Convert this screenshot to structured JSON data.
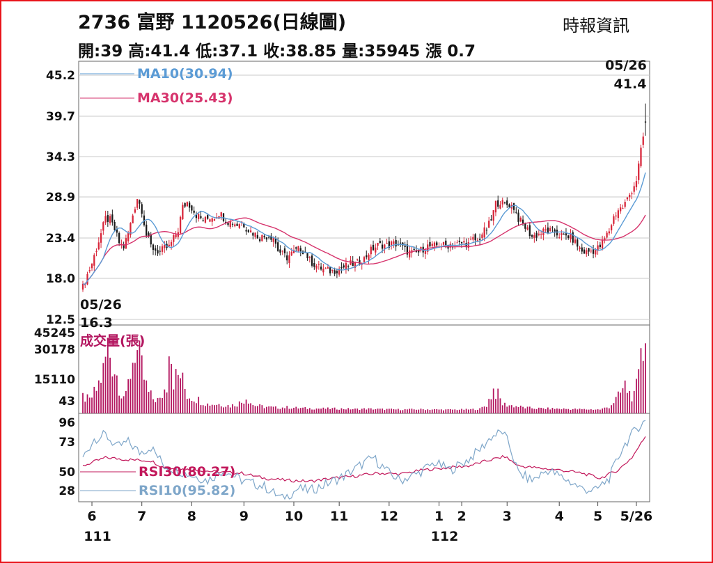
{
  "header": {
    "title": "2736  富野 1120526(日線圖)",
    "source": "時報資訊",
    "stats": "開:39 高:41.4 低:37.1 收:38.85 量:35945 漲 0.7"
  },
  "colors": {
    "frame": "#e8141b",
    "candle_up": "#d8263a",
    "candle_down": "#1a1a1a",
    "ma10": "#5b9bd5",
    "ma30": "#d6336c",
    "volume": "#b3155f",
    "rsi10": "#7ea6c9",
    "rsi30": "#c2185b",
    "grid": "#c8c8c8"
  },
  "chart_data": [
    {
      "type": "candlestick",
      "panel": "price",
      "y_ticks": [
        "45.2",
        "39.7",
        "34.3",
        "28.9",
        "23.4",
        "18.0",
        "12.5"
      ],
      "ylim": [
        12.5,
        45.2
      ],
      "grid": true,
      "annotations": {
        "high_date": "05/26",
        "high_value": "41.4",
        "low_date": "05/26",
        "low_value": "16.3"
      },
      "series": [
        {
          "name": "MA10(30.94)"
        },
        {
          "name": "MA30(25.43)"
        }
      ],
      "close_path": [
        [
          0,
          16.8
        ],
        [
          2,
          18.5
        ],
        [
          4,
          20.0
        ],
        [
          6,
          22.0
        ],
        [
          8,
          24.0
        ],
        [
          10,
          26.0
        ],
        [
          12,
          25.8
        ],
        [
          14,
          24.5
        ],
        [
          16,
          22.8
        ],
        [
          18,
          22.2
        ],
        [
          20,
          24.0
        ],
        [
          22,
          26.5
        ],
        [
          24,
          28.8
        ],
        [
          26,
          27.2
        ],
        [
          28,
          23.8
        ],
        [
          30,
          22.3
        ],
        [
          32,
          21.8
        ],
        [
          34,
          21.5
        ],
        [
          36,
          22.0
        ],
        [
          38,
          22.2
        ],
        [
          40,
          23.3
        ],
        [
          42,
          24.5
        ],
        [
          44,
          27.5
        ],
        [
          46,
          28.2
        ],
        [
          48,
          27.5
        ],
        [
          50,
          26.5
        ],
        [
          52,
          26.0
        ],
        [
          54,
          25.8
        ],
        [
          56,
          26.2
        ],
        [
          58,
          26.3
        ],
        [
          60,
          26.8
        ],
        [
          62,
          26.2
        ],
        [
          64,
          25.6
        ],
        [
          66,
          25.5
        ],
        [
          68,
          25.2
        ],
        [
          70,
          25.6
        ],
        [
          72,
          24.8
        ],
        [
          74,
          24.3
        ],
        [
          76,
          23.9
        ],
        [
          78,
          23.5
        ],
        [
          80,
          23.6
        ],
        [
          82,
          23.7
        ],
        [
          84,
          23.5
        ],
        [
          86,
          21.8
        ],
        [
          88,
          21.2
        ],
        [
          90,
          20.8
        ],
        [
          92,
          21.3
        ],
        [
          94,
          21.7
        ],
        [
          96,
          22.0
        ],
        [
          98,
          21.5
        ],
        [
          100,
          20.4
        ],
        [
          102,
          19.9
        ],
        [
          104,
          19.5
        ],
        [
          106,
          19.2
        ],
        [
          108,
          19.0
        ],
        [
          110,
          19.0
        ],
        [
          112,
          19.2
        ],
        [
          114,
          19.4
        ],
        [
          116,
          19.6
        ],
        [
          118,
          19.9
        ],
        [
          120,
          19.9
        ],
        [
          122,
          20.3
        ],
        [
          124,
          20.6
        ],
        [
          126,
          21.5
        ],
        [
          128,
          22.0
        ],
        [
          130,
          22.4
        ],
        [
          132,
          22.5
        ],
        [
          134,
          22.4
        ],
        [
          136,
          22.6
        ],
        [
          138,
          22.6
        ],
        [
          140,
          22.4
        ],
        [
          142,
          21.8
        ],
        [
          144,
          21.5
        ],
        [
          146,
          21.3
        ],
        [
          148,
          21.5
        ],
        [
          150,
          22.0
        ],
        [
          152,
          22.3
        ],
        [
          154,
          22.2
        ],
        [
          156,
          22.4
        ],
        [
          158,
          22.5
        ],
        [
          160,
          22.3
        ],
        [
          162,
          22.6
        ],
        [
          164,
          22.5
        ],
        [
          166,
          22.6
        ],
        [
          168,
          22.8
        ],
        [
          170,
          22.6
        ],
        [
          172,
          23.2
        ],
        [
          174,
          23.0
        ],
        [
          176,
          24.0
        ],
        [
          178,
          24.6
        ],
        [
          180,
          25.8
        ],
        [
          182,
          28.0
        ],
        [
          184,
          28.3
        ],
        [
          186,
          27.8
        ],
        [
          188,
          27.9
        ],
        [
          190,
          27.5
        ],
        [
          192,
          26.0
        ],
        [
          194,
          25.2
        ],
        [
          196,
          24.5
        ],
        [
          198,
          23.6
        ],
        [
          200,
          23.8
        ],
        [
          202,
          24.1
        ],
        [
          204,
          24.4
        ],
        [
          206,
          24.3
        ],
        [
          208,
          24.2
        ],
        [
          210,
          23.8
        ],
        [
          212,
          23.6
        ],
        [
          214,
          23.7
        ],
        [
          216,
          23.2
        ],
        [
          218,
          22.4
        ],
        [
          220,
          21.6
        ],
        [
          222,
          21.5
        ],
        [
          224,
          21.7
        ],
        [
          226,
          21.8
        ],
        [
          228,
          22.3
        ],
        [
          230,
          23.3
        ],
        [
          232,
          24.4
        ],
        [
          234,
          26.2
        ],
        [
          236,
          27.2
        ],
        [
          238,
          27.5
        ],
        [
          240,
          28.6
        ],
        [
          242,
          29.8
        ],
        [
          244,
          31.2
        ],
        [
          246,
          35.0
        ],
        [
          248,
          38.85
        ]
      ],
      "final_candle": {
        "open": 39,
        "high": 41.4,
        "low": 37.1,
        "close": 38.85
      }
    },
    {
      "type": "bar",
      "panel": "volume",
      "title": "成交量(張)",
      "y_ticks": [
        "45245",
        "30178",
        "15110",
        "43"
      ],
      "ylim": [
        43,
        45245
      ],
      "series": [
        {
          "name": "成交量(張)",
          "profile": [
            [
              0,
              8000
            ],
            [
              3,
              6000
            ],
            [
              6,
              12000
            ],
            [
              9,
              22000
            ],
            [
              11,
              36000
            ],
            [
              13,
              28000
            ],
            [
              15,
              20000
            ],
            [
              17,
              10000
            ],
            [
              19,
              8000
            ],
            [
              21,
              22000
            ],
            [
              23,
              36000
            ],
            [
              25,
              28000
            ],
            [
              27,
              18000
            ],
            [
              29,
              10000
            ],
            [
              31,
              7000
            ],
            [
              34,
              6000
            ],
            [
              37,
              15000
            ],
            [
              38,
              45245
            ],
            [
              40,
              18000
            ],
            [
              43,
              20000
            ],
            [
              46,
              9000
            ],
            [
              50,
              7000
            ],
            [
              55,
              4000
            ],
            [
              60,
              4000
            ],
            [
              65,
              3000
            ],
            [
              70,
              5000
            ],
            [
              72,
              8000
            ],
            [
              75,
              3500
            ],
            [
              80,
              2500
            ],
            [
              85,
              2000
            ],
            [
              90,
              2200
            ],
            [
              95,
              1800
            ],
            [
              100,
              1600
            ],
            [
              105,
              1500
            ],
            [
              110,
              1500
            ],
            [
              115,
              1400
            ],
            [
              120,
              1200
            ],
            [
              125,
              1400
            ],
            [
              130,
              1200
            ],
            [
              140,
              1000
            ],
            [
              150,
              1100
            ],
            [
              160,
              900
            ],
            [
              170,
              1000
            ],
            [
              175,
              1300
            ],
            [
              178,
              3500
            ],
            [
              181,
              12000
            ],
            [
              183,
              9000
            ],
            [
              185,
              4000
            ],
            [
              190,
              3000
            ],
            [
              195,
              2000
            ],
            [
              200,
              1600
            ],
            [
              210,
              1400
            ],
            [
              220,
              1100
            ],
            [
              228,
              1000
            ],
            [
              232,
              2500
            ],
            [
              236,
              8000
            ],
            [
              239,
              14000
            ],
            [
              241,
              10000
            ],
            [
              243,
              8000
            ],
            [
              245,
              18000
            ],
            [
              246,
              40000
            ],
            [
              248,
              35945
            ]
          ]
        }
      ]
    },
    {
      "type": "line",
      "panel": "rsi",
      "y_ticks": [
        "96",
        "73",
        "50",
        "28"
      ],
      "ylim": [
        20,
        100
      ],
      "series": [
        {
          "name": "RSI30(80.27)",
          "points": [
            [
              0,
              52
            ],
            [
              10,
              60
            ],
            [
              20,
              58
            ],
            [
              30,
              57
            ],
            [
              36,
              50
            ],
            [
              50,
              48
            ],
            [
              60,
              46
            ],
            [
              70,
              45
            ],
            [
              80,
              40
            ],
            [
              90,
              38
            ],
            [
              100,
              37
            ],
            [
              110,
              40
            ],
            [
              120,
              42
            ],
            [
              130,
              45
            ],
            [
              140,
              44
            ],
            [
              150,
              48
            ],
            [
              160,
              50
            ],
            [
              170,
              52
            ],
            [
              180,
              58
            ],
            [
              186,
              61
            ],
            [
              192,
              52
            ],
            [
              200,
              50
            ],
            [
              210,
              48
            ],
            [
              220,
              45
            ],
            [
              228,
              40
            ],
            [
              236,
              48
            ],
            [
              242,
              60
            ],
            [
              248,
              80.27
            ]
          ]
        },
        {
          "name": "RSI10(95.82)",
          "points": [
            [
              0,
              60
            ],
            [
              5,
              78
            ],
            [
              10,
              82
            ],
            [
              15,
              70
            ],
            [
              20,
              75
            ],
            [
              25,
              65
            ],
            [
              30,
              70
            ],
            [
              36,
              52
            ],
            [
              45,
              45
            ],
            [
              55,
              38
            ],
            [
              62,
              48
            ],
            [
              70,
              38
            ],
            [
              80,
              32
            ],
            [
              88,
              20
            ],
            [
              95,
              30
            ],
            [
              100,
              28
            ],
            [
              108,
              35
            ],
            [
              115,
              42
            ],
            [
              122,
              52
            ],
            [
              128,
              60
            ],
            [
              135,
              45
            ],
            [
              140,
              38
            ],
            [
              148,
              45
            ],
            [
              155,
              55
            ],
            [
              162,
              48
            ],
            [
              170,
              58
            ],
            [
              176,
              70
            ],
            [
              180,
              80
            ],
            [
              185,
              85
            ],
            [
              188,
              72
            ],
            [
              192,
              45
            ],
            [
              198,
              38
            ],
            [
              205,
              48
            ],
            [
              212,
              40
            ],
            [
              220,
              30
            ],
            [
              226,
              28
            ],
            [
              232,
              40
            ],
            [
              238,
              70
            ],
            [
              244,
              88
            ],
            [
              248,
              95.82
            ]
          ]
        }
      ]
    },
    {
      "type": "axis",
      "x_ticks": [
        "6",
        "7",
        "8",
        "9",
        "10",
        "11",
        "12",
        "1",
        "2",
        "3",
        "4",
        "5",
        "5/26"
      ],
      "x_tick_days": [
        4,
        26,
        48,
        71,
        93,
        113,
        135,
        157,
        167,
        187,
        210,
        227,
        244
      ],
      "year_labels": [
        "111",
        "112"
      ],
      "year_days": [
        4,
        157
      ],
      "x_range_days": [
        0,
        248
      ]
    }
  ]
}
